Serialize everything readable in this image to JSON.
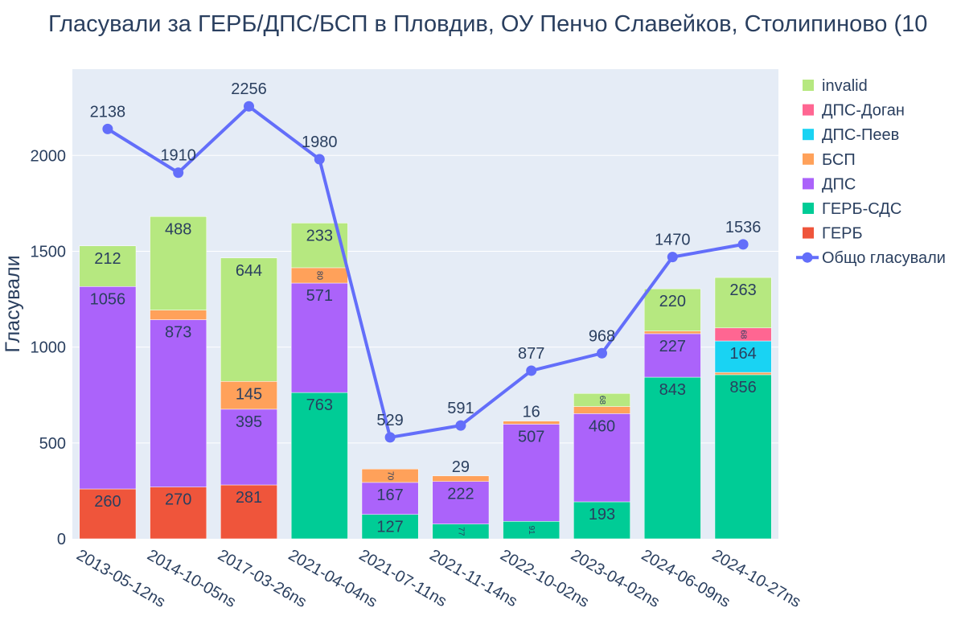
{
  "chart_data": {
    "type": "bar",
    "title": "Гласували за ГЕРБ/ДПС/БСП в Пловдив, ОУ Пенчо Славейков, Столипиново (10",
    "ylabel": "Гласували",
    "xlabel": "",
    "ylim": [
      0,
      2450
    ],
    "yticks": [
      0,
      500,
      1000,
      1500,
      2000
    ],
    "categories": [
      "2013-05-12ns",
      "2014-10-05ns",
      "2017-03-26ns",
      "2021-04-04ns",
      "2021-07-11ns",
      "2021-11-14ns",
      "2022-10-02ns",
      "2023-04-02ns",
      "2024-06-09ns",
      "2024-10-27ns"
    ],
    "barmode": "stack",
    "legend_placement": "right",
    "series": [
      {
        "name": "ГЕРБ",
        "color": "#ef553b",
        "values": [
          260,
          270,
          281,
          0,
          0,
          0,
          0,
          0,
          0,
          0
        ],
        "labels": [
          "260",
          "270",
          "281",
          "",
          "",
          "",
          "",
          "",
          "",
          ""
        ]
      },
      {
        "name": "ГЕРБ-СДС",
        "color": "#00cc96",
        "values": [
          0,
          0,
          0,
          763,
          127,
          77,
          91,
          193,
          843,
          856
        ],
        "labels": [
          "",
          "",
          "",
          "763",
          "127",
          "77",
          "91",
          "193",
          "843",
          "856"
        ]
      },
      {
        "name": "ДПС",
        "color": "#ab63fa",
        "values": [
          1056,
          873,
          395,
          571,
          167,
          222,
          507,
          460,
          227,
          0
        ],
        "labels": [
          "1056",
          "873",
          "395",
          "571",
          "167",
          "222",
          "507",
          "460",
          "227",
          ""
        ]
      },
      {
        "name": "БСП",
        "color": "#ffa15a",
        "values": [
          0,
          50,
          145,
          80,
          70,
          29,
          16,
          37,
          14,
          12
        ],
        "labels": [
          "",
          "",
          "145",
          "80",
          "70",
          "29",
          "16",
          "",
          "",
          ""
        ]
      },
      {
        "name": "ДПС-Пеев",
        "color": "#19d3f3",
        "values": [
          0,
          0,
          0,
          0,
          0,
          0,
          0,
          0,
          0,
          164
        ],
        "labels": [
          "",
          "",
          "",
          "",
          "",
          "",
          "",
          "",
          "",
          "164"
        ]
      },
      {
        "name": "ДПС-Доган",
        "color": "#ff6692",
        "values": [
          0,
          0,
          0,
          0,
          0,
          0,
          0,
          0,
          0,
          68
        ],
        "labels": [
          "",
          "",
          "",
          "",
          "",
          "",
          "",
          "",
          "",
          "68"
        ]
      },
      {
        "name": "invalid",
        "color": "#b6e880",
        "values": [
          212,
          488,
          644,
          233,
          0,
          0,
          0,
          68,
          220,
          263
        ],
        "labels": [
          "212",
          "488",
          "644",
          "233",
          "",
          "",
          "",
          "68",
          "220",
          "263"
        ]
      }
    ],
    "line": {
      "name": "Общо гласували",
      "color": "#636efa",
      "values": [
        2138,
        1910,
        2256,
        1980,
        529,
        591,
        877,
        968,
        1470,
        1536
      ]
    },
    "legend_order": [
      "invalid",
      "ДПС-Доган",
      "ДПС-Пеев",
      "БСП",
      "ДПС",
      "ГЕРБ-СДС",
      "ГЕРБ",
      "Общо гласували"
    ]
  }
}
